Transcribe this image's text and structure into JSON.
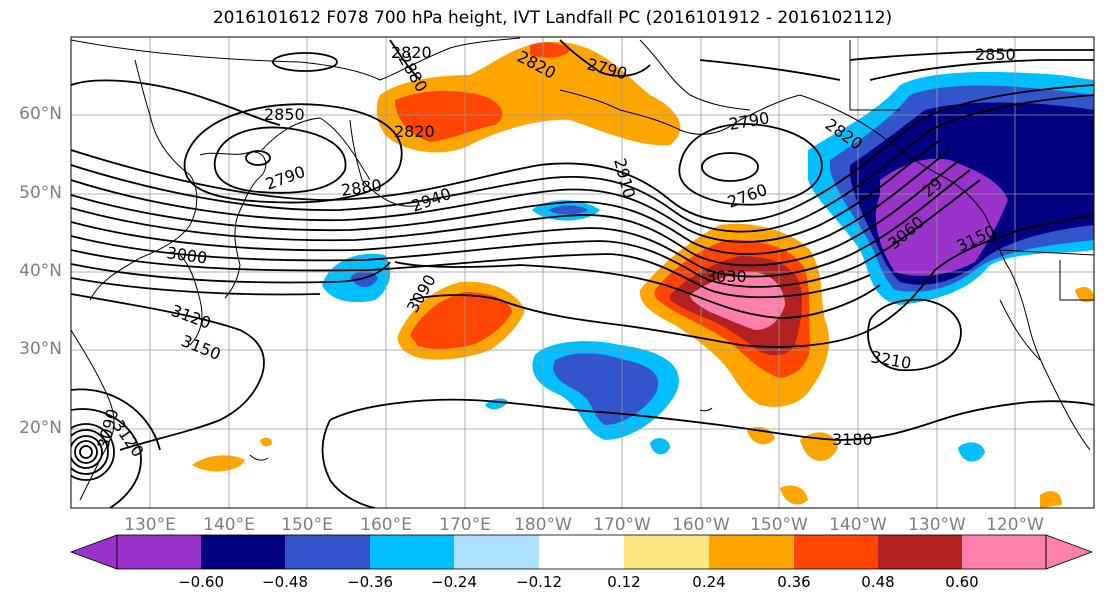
{
  "title": "2016101612 F078 700 hPa height, IVT Landfall PC (2016101912 - 2016102112)",
  "map": {
    "lat_labels": [
      "60°N",
      "50°N",
      "40°N",
      "30°N",
      "20°N"
    ],
    "lon_labels": [
      "130°E",
      "140°E",
      "150°E",
      "160°E",
      "170°E",
      "180°W",
      "170°W",
      "160°W",
      "150°W",
      "140°W",
      "130°W",
      "120°W"
    ],
    "contour_labels": [
      "2880",
      "2820",
      "2790",
      "2850",
      "2820",
      "2790",
      "2880",
      "2940",
      "2910",
      "2790",
      "2820",
      "2850",
      "2760",
      "2820",
      "29",
      "3060",
      "3150",
      "3000",
      "3090",
      "3030",
      "3210",
      "3180",
      "3120",
      "3150",
      "3120",
      "3090"
    ]
  },
  "colorbar": {
    "colors": [
      "#9933cc",
      "#000080",
      "#3355cc",
      "#00bfff",
      "#aee0ff",
      "#ffffff",
      "#ffe680",
      "#ffa500",
      "#ff4500",
      "#b22222",
      "#ff80aa"
    ],
    "ticks": [
      "−0.60",
      "−0.48",
      "−0.36",
      "−0.24",
      "−0.12",
      "0.12",
      "0.24",
      "0.36",
      "0.48",
      "0.60"
    ]
  }
}
